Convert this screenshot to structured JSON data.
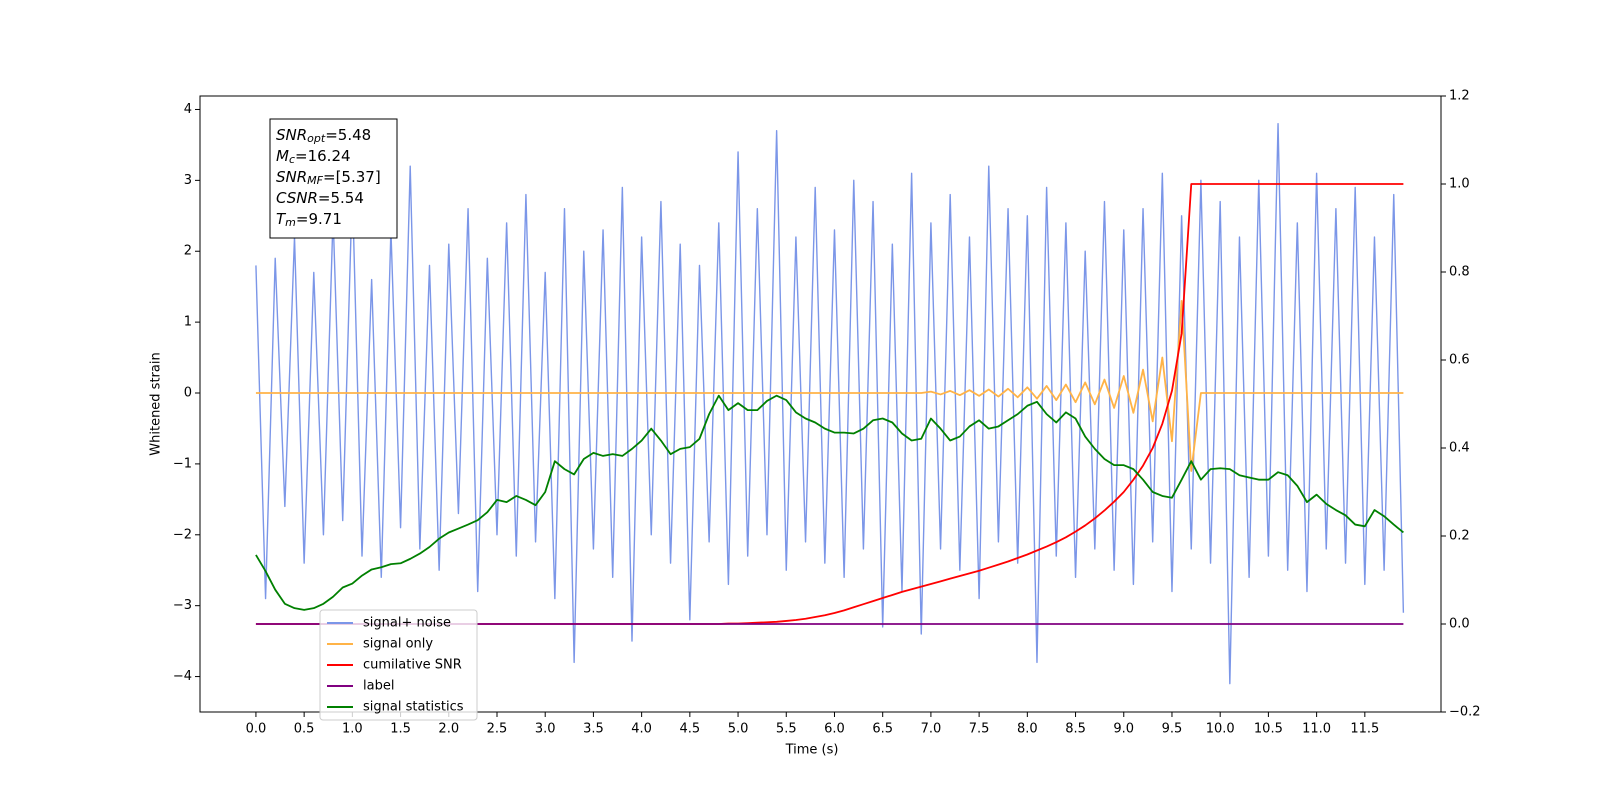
{
  "chart_data": {
    "type": "line",
    "x_label": "Time (s)",
    "y_label": "Whitened strain",
    "x": [
      0,
      0.1,
      0.2,
      0.3,
      0.4,
      0.5,
      0.6,
      0.7,
      0.8,
      0.9,
      1,
      1.1,
      1.2,
      1.3,
      1.4,
      1.5,
      1.6,
      1.7,
      1.8,
      1.9,
      2,
      2.1,
      2.2,
      2.3,
      2.4,
      2.5,
      2.6,
      2.7,
      2.8,
      2.9,
      3,
      3.1,
      3.2,
      3.3,
      3.4,
      3.5,
      3.6,
      3.7,
      3.8,
      3.9,
      4,
      4.1,
      4.2,
      4.3,
      4.4,
      4.5,
      4.6,
      4.7,
      4.8,
      4.9,
      5,
      5.1,
      5.2,
      5.3,
      5.4,
      5.5,
      5.6,
      5.7,
      5.8,
      5.9,
      6,
      6.1,
      6.2,
      6.3,
      6.4,
      6.5,
      6.6,
      6.7,
      6.8,
      6.9,
      7,
      7.1,
      7.2,
      7.3,
      7.4,
      7.5,
      7.6,
      7.7,
      7.8,
      7.9,
      8,
      8.1,
      8.2,
      8.3,
      8.4,
      8.5,
      8.6,
      8.7,
      8.8,
      8.9,
      9,
      9.1,
      9.2,
      9.3,
      9.4,
      9.5,
      9.6,
      9.7,
      9.8,
      9.9,
      10,
      10.1,
      10.2,
      10.3,
      10.4,
      10.5,
      10.6,
      10.7,
      10.8,
      10.9,
      11,
      11.1,
      11.2,
      11.3,
      11.4,
      11.5,
      11.6,
      11.7,
      11.8,
      11.9
    ],
    "series": [
      {
        "name": "signal+ noise",
        "color": "#7b96e8",
        "values": [
          1.8,
          -2.9,
          1.9,
          -1.6,
          2.2,
          -2.4,
          1.7,
          -2.0,
          2.5,
          -1.8,
          2.9,
          -2.3,
          1.6,
          -2.6,
          2.3,
          -1.9,
          3.2,
          -2.2,
          1.8,
          -2.5,
          2.1,
          -1.7,
          2.6,
          -2.8,
          1.9,
          -2.0,
          2.4,
          -2.3,
          2.8,
          -2.1,
          1.7,
          -2.9,
          2.6,
          -3.8,
          2.0,
          -2.2,
          2.3,
          -2.6,
          2.9,
          -3.5,
          2.2,
          -2.0,
          2.7,
          -2.4,
          2.1,
          -3.2,
          1.8,
          -2.1,
          2.4,
          -2.7,
          3.4,
          -2.3,
          2.6,
          -2.0,
          3.7,
          -2.5,
          2.2,
          -2.1,
          2.9,
          -2.4,
          2.3,
          -2.6,
          3.0,
          -2.2,
          2.7,
          -3.3,
          2.1,
          -2.8,
          3.1,
          -3.4,
          2.4,
          -2.2,
          2.8,
          -2.5,
          2.2,
          -2.9,
          3.2,
          -2.1,
          2.6,
          -2.4,
          2.5,
          -3.8,
          2.9,
          -2.3,
          2.4,
          -2.6,
          2.0,
          -2.2,
          2.7,
          -2.5,
          2.3,
          -2.7,
          2.6,
          -2.1,
          3.1,
          -2.8,
          2.5,
          -2.2,
          3.0,
          -2.4,
          2.7,
          -4.1,
          2.2,
          -2.6,
          3.0,
          -2.3,
          3.8,
          -2.5,
          2.4,
          -2.8,
          3.1,
          -2.2,
          2.6,
          -2.4,
          2.9,
          -2.7,
          2.2,
          -2.5,
          2.8,
          -3.1
        ]
      },
      {
        "name": "signal only",
        "color": "#ffb347",
        "values": [
          0,
          0,
          0,
          0,
          0,
          0,
          0,
          0,
          0,
          0,
          0,
          0,
          0,
          0,
          0,
          0,
          0,
          0,
          0,
          0,
          0,
          0,
          0,
          0,
          0,
          0,
          0,
          0,
          0,
          0,
          0,
          0,
          0,
          0,
          0,
          0,
          0,
          0,
          0,
          0,
          0,
          0,
          0,
          0,
          0,
          0,
          0,
          0,
          0,
          0,
          0,
          0,
          0,
          0,
          0,
          0,
          0,
          0,
          0,
          0,
          0,
          0,
          0,
          0,
          0,
          0,
          0,
          0,
          0,
          0,
          0.02,
          -0.02,
          0.03,
          -0.03,
          0.04,
          -0.04,
          0.05,
          -0.05,
          0.06,
          -0.06,
          0.08,
          -0.08,
          0.1,
          -0.1,
          0.12,
          -0.13,
          0.15,
          -0.16,
          0.19,
          -0.21,
          0.24,
          -0.28,
          0.33,
          -0.4,
          0.5,
          -0.68,
          1.3,
          -1.1,
          0,
          0,
          0,
          0,
          0,
          0,
          0,
          0,
          0,
          0,
          0,
          0,
          0,
          0,
          0,
          0,
          0,
          0,
          0,
          0,
          0,
          0
        ]
      },
      {
        "name": "cumilative SNR",
        "color": "#ff0000",
        "axis": "y2",
        "values": [
          0,
          0,
          0,
          0,
          0,
          0,
          0,
          0,
          0,
          0,
          0,
          0,
          0,
          0,
          0,
          0,
          0,
          0,
          0,
          0,
          0,
          0,
          0,
          0,
          0,
          0,
          0,
          0,
          0,
          0,
          0,
          0,
          0,
          0,
          0,
          0,
          0,
          0,
          0,
          0,
          0,
          0,
          0,
          0,
          0,
          0,
          0,
          0,
          0,
          0.001,
          0.001,
          0.002,
          0.003,
          0.004,
          0.005,
          0.007,
          0.009,
          0.012,
          0.016,
          0.02,
          0.025,
          0.031,
          0.038,
          0.045,
          0.052,
          0.059,
          0.066,
          0.073,
          0.079,
          0.085,
          0.091,
          0.097,
          0.103,
          0.109,
          0.115,
          0.121,
          0.128,
          0.135,
          0.142,
          0.15,
          0.158,
          0.167,
          0.176,
          0.186,
          0.197,
          0.21,
          0.224,
          0.24,
          0.258,
          0.278,
          0.3,
          0.328,
          0.36,
          0.4,
          0.455,
          0.53,
          0.66,
          1.0,
          1.0,
          1.0,
          1.0,
          1.0,
          1.0,
          1.0,
          1.0,
          1.0,
          1.0,
          1.0,
          1.0,
          1.0,
          1.0,
          1.0,
          1.0,
          1.0,
          1.0,
          1.0,
          1.0,
          1.0,
          1.0,
          1.0
        ]
      },
      {
        "name": "label",
        "color": "#800080",
        "axis": "y2",
        "values": [
          0,
          0,
          0,
          0,
          0,
          0,
          0,
          0,
          0,
          0,
          0,
          0,
          0,
          0,
          0,
          0,
          0,
          0,
          0,
          0,
          0,
          0,
          0,
          0,
          0,
          0,
          0,
          0,
          0,
          0,
          0,
          0,
          0,
          0,
          0,
          0,
          0,
          0,
          0,
          0,
          0,
          0,
          0,
          0,
          0,
          0,
          0,
          0,
          0,
          0,
          0,
          0,
          0,
          0,
          0,
          0,
          0,
          0,
          0,
          0,
          0,
          0,
          0,
          0,
          0,
          0,
          0,
          0,
          0,
          0,
          0,
          0,
          0,
          0,
          0,
          0,
          0,
          0,
          0,
          0,
          0,
          0,
          0,
          0,
          0,
          0,
          0,
          0,
          0,
          0,
          0,
          0,
          0,
          0,
          0,
          0,
          0,
          0,
          0,
          0,
          0,
          0,
          0,
          0,
          0,
          0,
          0,
          0,
          0,
          0,
          0,
          0,
          0,
          0,
          0,
          0,
          0,
          0,
          0,
          0
        ]
      },
      {
        "name": "signal statistics",
        "color": "#008000",
        "axis": "y2",
        "values": [
          0.157,
          0.12,
          0.078,
          0.046,
          0.036,
          0.032,
          0.036,
          0.046,
          0.062,
          0.083,
          0.092,
          0.11,
          0.124,
          0.129,
          0.136,
          0.138,
          0.148,
          0.16,
          0.175,
          0.194,
          0.208,
          0.217,
          0.226,
          0.236,
          0.254,
          0.282,
          0.277,
          0.291,
          0.282,
          0.27,
          0.3,
          0.37,
          0.352,
          0.34,
          0.375,
          0.389,
          0.382,
          0.386,
          0.382,
          0.398,
          0.417,
          0.444,
          0.417,
          0.386,
          0.398,
          0.402,
          0.421,
          0.477,
          0.519,
          0.486,
          0.502,
          0.486,
          0.486,
          0.507,
          0.519,
          0.509,
          0.481,
          0.467,
          0.458,
          0.444,
          0.435,
          0.435,
          0.433,
          0.444,
          0.463,
          0.467,
          0.458,
          0.433,
          0.417,
          0.421,
          0.467,
          0.444,
          0.417,
          0.426,
          0.449,
          0.463,
          0.444,
          0.449,
          0.463,
          0.477,
          0.496,
          0.505,
          0.477,
          0.458,
          0.481,
          0.467,
          0.426,
          0.398,
          0.375,
          0.361,
          0.361,
          0.352,
          0.328,
          0.3,
          0.291,
          0.287,
          0.328,
          0.37,
          0.328,
          0.352,
          0.354,
          0.352,
          0.338,
          0.333,
          0.328,
          0.328,
          0.345,
          0.338,
          0.314,
          0.277,
          0.294,
          0.273,
          0.259,
          0.247,
          0.226,
          0.222,
          0.259,
          0.245,
          0.226,
          0.208
        ]
      }
    ],
    "xlim": [
      -0.58,
      12.29
    ],
    "xticks": [
      {
        "value": 0,
        "label": "0.0"
      },
      0.5,
      {
        "value": 1,
        "label": "1.0"
      },
      1.5,
      {
        "value": 2,
        "label": "2.0"
      },
      2.5,
      {
        "value": 3,
        "label": "3.0"
      },
      3.5,
      {
        "value": 4,
        "label": "4.0"
      },
      4.5,
      {
        "value": 5,
        "label": "5.0"
      },
      5.5,
      {
        "value": 6,
        "label": "6.0"
      },
      6.5,
      {
        "value": 7,
        "label": "7.0"
      },
      7.5,
      {
        "value": 8,
        "label": "8.0"
      },
      8.5,
      {
        "value": 9,
        "label": "9.0"
      },
      9.5,
      {
        "value": 10,
        "label": "10.0"
      },
      10.5,
      {
        "value": 11,
        "label": "11.0"
      },
      11.5
    ],
    "ylim": [
      -4.5,
      4.19
    ],
    "yticks": [
      {
        "value": -4,
        "label": "−4"
      },
      {
        "value": -3,
        "label": "−3"
      },
      {
        "value": -2,
        "label": "−2"
      },
      {
        "value": -1,
        "label": "−1"
      },
      0,
      1,
      2,
      3,
      4
    ],
    "y2lim": [
      -0.2,
      1.2
    ],
    "y2ticks": [
      {
        "value": -0.2,
        "label": "−0.2"
      },
      {
        "value": 0,
        "label": "0.0"
      },
      0.2,
      0.4,
      0.6,
      0.8,
      {
        "value": 1,
        "label": "1.0"
      },
      1.2
    ],
    "grid": false,
    "legend": "lower left",
    "stats": [
      {
        "name": "SNR",
        "sub": "opt",
        "text": "=5.48"
      },
      {
        "name": "M",
        "sub": "c",
        "text": "=16.24"
      },
      {
        "name": "SNR",
        "sub": "MF",
        "text": "=[5.37]"
      },
      {
        "name": "CSNR",
        "sub": null,
        "text": "=5.54"
      },
      {
        "name": "T",
        "sub": "m",
        "text": "=9.71"
      }
    ]
  }
}
